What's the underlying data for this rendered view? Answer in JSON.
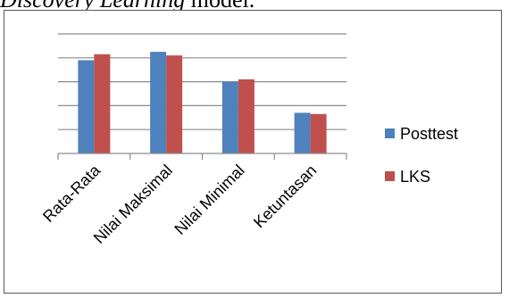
{
  "caption": {
    "italic": "Discovery Learning",
    "rest": " model."
  },
  "chart_data": {
    "type": "bar",
    "categories": [
      "Rata-Rata",
      "Nilai Maksimal",
      "Nilai Minimal",
      "Ketuntasan"
    ],
    "series": [
      {
        "name": "Posttest",
        "values": [
          78,
          85,
          60,
          34
        ],
        "color": "#4F81BD"
      },
      {
        "name": "LKS",
        "values": [
          83,
          82,
          62,
          33
        ],
        "color": "#C0504D"
      }
    ],
    "ylim": [
      0,
      100
    ],
    "yticks": [
      0,
      20,
      40,
      60,
      80,
      100
    ],
    "y_tick_labels_shown": false,
    "grid": true,
    "legend": "right"
  }
}
